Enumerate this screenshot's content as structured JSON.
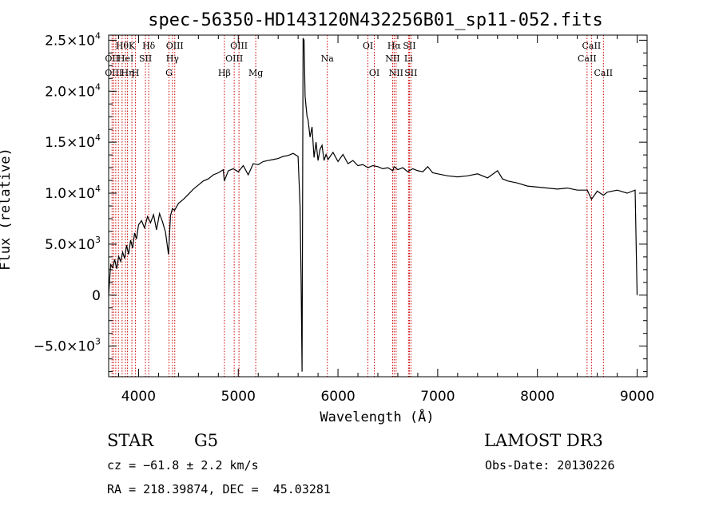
{
  "chart_data": {
    "type": "line",
    "title": "spec-56350-HD143120N432256B01_sp11-052.fits",
    "xlabel": "Wavelength (Å)",
    "ylabel": "Flux (relative)",
    "xlim": [
      3700,
      9100
    ],
    "ylim": [
      -8000,
      25500
    ],
    "x_ticks": [
      {
        "value": 4000,
        "label": "4000"
      },
      {
        "value": 5000,
        "label": "5000"
      },
      {
        "value": 6000,
        "label": "6000"
      },
      {
        "value": 7000,
        "label": "7000"
      },
      {
        "value": 8000,
        "label": "8000"
      },
      {
        "value": 9000,
        "label": "9000"
      }
    ],
    "y_ticks": [
      {
        "value": -5000,
        "mantissa": "−5.0×10",
        "exp": "3"
      },
      {
        "value": 0,
        "mantissa": "0",
        "exp": ""
      },
      {
        "value": 5000,
        "mantissa": "5.0×10",
        "exp": "3"
      },
      {
        "value": 10000,
        "mantissa": "1.0×10",
        "exp": "4"
      },
      {
        "value": 15000,
        "mantissa": "1.5×10",
        "exp": "4"
      },
      {
        "value": 20000,
        "mantissa": "2.0×10",
        "exp": "4"
      },
      {
        "value": 25000,
        "mantissa": "2.5×10",
        "exp": "4"
      }
    ],
    "series": [
      {
        "color": "#000000",
        "x": [
          3700,
          3720,
          3740,
          3760,
          3780,
          3800,
          3820,
          3840,
          3860,
          3880,
          3900,
          3920,
          3940,
          3960,
          3980,
          4000,
          4030,
          4060,
          4090,
          4120,
          4150,
          4180,
          4210,
          4240,
          4270,
          4300,
          4320,
          4340,
          4360,
          4400,
          4450,
          4500,
          4550,
          4600,
          4650,
          4700,
          4750,
          4800,
          4850,
          4860,
          4900,
          4950,
          5000,
          5050,
          5100,
          5150,
          5200,
          5250,
          5300,
          5350,
          5400,
          5450,
          5500,
          5550,
          5600,
          5620,
          5630,
          5640,
          5650,
          5660,
          5670,
          5680,
          5690,
          5700,
          5720,
          5740,
          5760,
          5780,
          5800,
          5820,
          5840,
          5860,
          5880,
          5900,
          5950,
          6000,
          6050,
          6100,
          6150,
          6200,
          6250,
          6300,
          6350,
          6400,
          6450,
          6500,
          6550,
          6563,
          6600,
          6650,
          6700,
          6750,
          6800,
          6850,
          6900,
          6950,
          7000,
          7100,
          7200,
          7300,
          7400,
          7500,
          7600,
          7650,
          7700,
          7800,
          7900,
          8000,
          8100,
          8200,
          8300,
          8400,
          8500,
          8542,
          8600,
          8662,
          8700,
          8800,
          8900,
          8980,
          9000
        ],
        "y": [
          0,
          3000,
          2700,
          3500,
          2600,
          3800,
          3300,
          4200,
          3600,
          4900,
          4000,
          5400,
          4600,
          6100,
          5500,
          6900,
          7300,
          6600,
          7700,
          7100,
          7900,
          6400,
          8000,
          7200,
          6200,
          4000,
          7800,
          8500,
          8300,
          9000,
          9400,
          9900,
          10400,
          10800,
          11200,
          11400,
          11800,
          12000,
          12300,
          11200,
          12200,
          12400,
          12100,
          12700,
          11800,
          12900,
          12800,
          13100,
          13200,
          13300,
          13400,
          13600,
          13700,
          13900,
          13600,
          8700,
          1500,
          -7500,
          25200,
          25000,
          19500,
          18500,
          17500,
          17200,
          15500,
          16500,
          13500,
          15000,
          13200,
          14300,
          14700,
          13200,
          13800,
          13300,
          14000,
          13100,
          13800,
          12900,
          13200,
          12700,
          12800,
          12500,
          12700,
          12600,
          12400,
          12500,
          12200,
          12600,
          12300,
          12500,
          12100,
          12400,
          12200,
          12100,
          12600,
          12000,
          11900,
          11700,
          11600,
          11700,
          11900,
          11500,
          12200,
          11400,
          11200,
          11000,
          10700,
          10600,
          10500,
          10400,
          10500,
          10300,
          10300,
          9400,
          10200,
          9800,
          10100,
          10300,
          10000,
          10300,
          0
        ]
      }
    ],
    "spectral_lines": [
      {
        "x": 3734,
        "label": "",
        "row": 0
      },
      {
        "x": 3750,
        "label": "",
        "row": 0
      },
      {
        "x": 3771,
        "label": "",
        "row": 0
      },
      {
        "x": 3798,
        "label": "",
        "row": 0
      },
      {
        "x": 3835,
        "label": "Hθ",
        "row": 0
      },
      {
        "x": 3869,
        "label": "",
        "row": 0
      },
      {
        "x": 3889,
        "label": "",
        "row": 0
      },
      {
        "x": 3933,
        "label": "K",
        "row": 0
      },
      {
        "x": 3969,
        "label": "",
        "row": 0
      },
      {
        "x": 4069,
        "label": "",
        "row": 0
      },
      {
        "x": 4102,
        "label": "Hδ",
        "row": 0
      },
      {
        "x": 4305,
        "label": "",
        "row": 0
      },
      {
        "x": 4340,
        "label": "",
        "row": 0
      },
      {
        "x": 4363,
        "label": "OIII",
        "row": 0
      },
      {
        "x": 4861,
        "label": "",
        "row": 0
      },
      {
        "x": 4959,
        "label": "",
        "row": 0
      },
      {
        "x": 5007,
        "label": "OIII",
        "row": 0
      },
      {
        "x": 5175,
        "label": "",
        "row": 0
      },
      {
        "x": 5893,
        "label": "",
        "row": 0
      },
      {
        "x": 6300,
        "label": "OI",
        "row": 0
      },
      {
        "x": 6364,
        "label": "",
        "row": 0
      },
      {
        "x": 6548,
        "label": "",
        "row": 0
      },
      {
        "x": 6563,
        "label": "Hα",
        "row": 0
      },
      {
        "x": 6583,
        "label": "",
        "row": 0
      },
      {
        "x": 6707,
        "label": "",
        "row": 0
      },
      {
        "x": 6716,
        "label": "SII",
        "row": 0
      },
      {
        "x": 6731,
        "label": "",
        "row": 0
      },
      {
        "x": 8498,
        "label": "",
        "row": 0
      },
      {
        "x": 8542,
        "label": "CaII",
        "row": 0
      },
      {
        "x": 8662,
        "label": "",
        "row": 0
      }
    ],
    "line_labels": [
      {
        "x": 3734,
        "row": 1,
        "text": "OII"
      },
      {
        "x": 3750,
        "row": 2,
        "text": "OIII"
      },
      {
        "x": 3835,
        "row": 0,
        "text": "Hθ"
      },
      {
        "x": 3869,
        "row": 1,
        "text": "HeI"
      },
      {
        "x": 3889,
        "row": 2,
        "text": "Hη"
      },
      {
        "x": 3933,
        "row": 0,
        "text": "K"
      },
      {
        "x": 3969,
        "row": 2,
        "text": "H"
      },
      {
        "x": 4069,
        "row": 1,
        "text": "SII"
      },
      {
        "x": 4102,
        "row": 0,
        "text": "Hδ"
      },
      {
        "x": 4305,
        "row": 2,
        "text": "G"
      },
      {
        "x": 4340,
        "row": 1,
        "text": "Hγ"
      },
      {
        "x": 4363,
        "row": 0,
        "text": "OIII"
      },
      {
        "x": 4861,
        "row": 2,
        "text": "Hβ"
      },
      {
        "x": 4959,
        "row": 1,
        "text": "OIII"
      },
      {
        "x": 5007,
        "row": 0,
        "text": "OIII"
      },
      {
        "x": 5175,
        "row": 2,
        "text": "Mg"
      },
      {
        "x": 5893,
        "row": 1,
        "text": "Na"
      },
      {
        "x": 6300,
        "row": 0,
        "text": "OI"
      },
      {
        "x": 6364,
        "row": 2,
        "text": "OI"
      },
      {
        "x": 6548,
        "row": 1,
        "text": "NII"
      },
      {
        "x": 6563,
        "row": 0,
        "text": "Hα"
      },
      {
        "x": 6583,
        "row": 2,
        "text": "NII"
      },
      {
        "x": 6707,
        "row": 1,
        "text": "Li"
      },
      {
        "x": 6716,
        "row": 0,
        "text": "SII"
      },
      {
        "x": 6731,
        "row": 2,
        "text": "SII"
      },
      {
        "x": 8498,
        "row": 1,
        "text": "CaII"
      },
      {
        "x": 8542,
        "row": 0,
        "text": "CaII"
      },
      {
        "x": 8662,
        "row": 2,
        "text": "CaII"
      }
    ],
    "line_marker_color": "#cc0000"
  },
  "info": {
    "class": "STAR",
    "subclass": "G5",
    "survey": "LAMOST DR3",
    "cz": "cz = −61.8 ± 2.2 km/s",
    "obs_date": "Obs-Date: 20130226",
    "coords": "RA = 218.39874, DEC =  45.03281"
  }
}
